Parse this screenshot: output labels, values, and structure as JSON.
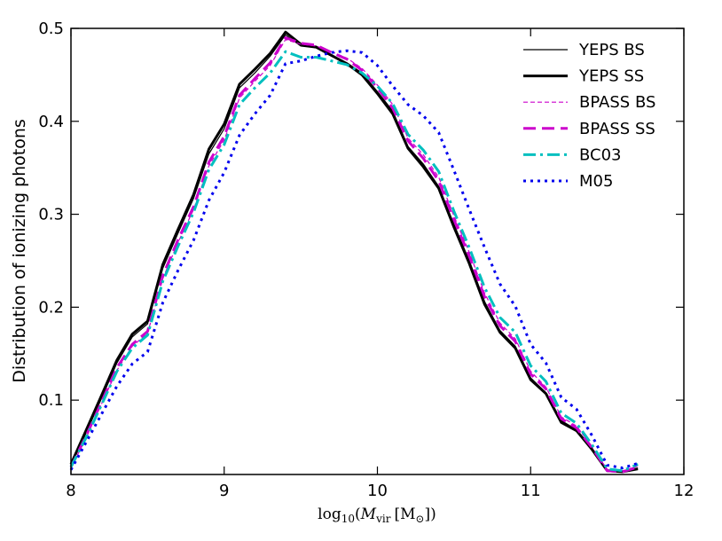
{
  "chart_data": {
    "type": "line",
    "title": "",
    "xlabel": "log10(M_vir [M_sun])",
    "xlabel_parts": {
      "func": "log",
      "sub": "10",
      "open": "(",
      "var": "M",
      "varsub": "vir",
      "unit_open": "[M",
      "unit_sub": "⊙",
      "close": "])"
    },
    "ylabel": "Distribution of ionizing photons",
    "xlim": [
      8,
      12
    ],
    "ylim": [
      0.02,
      0.5
    ],
    "xticks": [
      8,
      9,
      10,
      11,
      12
    ],
    "xtick_labels": [
      "8",
      "9",
      "10",
      "11",
      "12"
    ],
    "yticks": [
      0.1,
      0.2,
      0.3,
      0.4,
      0.5
    ],
    "ytick_labels": [
      "0.1",
      "0.2",
      "0.3",
      "0.4",
      "0.5"
    ],
    "grid": false,
    "legend_position": "top-right",
    "series": [
      {
        "name": "YEPS BS",
        "color": "#000000",
        "style": "solid",
        "width": 1.2,
        "x": [
          8.0,
          8.1,
          8.2,
          8.3,
          8.4,
          8.5,
          8.6,
          8.7,
          8.8,
          8.9,
          9.0,
          9.1,
          9.2,
          9.3,
          9.4,
          9.5,
          9.6,
          9.7,
          9.8,
          9.9,
          10.0,
          10.1,
          10.2,
          10.3,
          10.4,
          10.5,
          10.6,
          10.7,
          10.8,
          10.9,
          11.0,
          11.1,
          11.2,
          11.3,
          11.4,
          11.5,
          11.6,
          11.7
        ],
        "y": [
          0.03,
          0.065,
          0.102,
          0.14,
          0.168,
          0.182,
          0.242,
          0.28,
          0.317,
          0.365,
          0.392,
          0.436,
          0.452,
          0.47,
          0.493,
          0.481,
          0.479,
          0.47,
          0.463,
          0.452,
          0.432,
          0.411,
          0.373,
          0.354,
          0.33,
          0.289,
          0.25,
          0.206,
          0.175,
          0.158,
          0.124,
          0.108,
          0.078,
          0.068,
          0.048,
          0.025,
          0.024,
          0.027
        ]
      },
      {
        "name": "YEPS SS",
        "color": "#000000",
        "style": "solid",
        "width": 3,
        "x": [
          8.0,
          8.1,
          8.2,
          8.3,
          8.4,
          8.5,
          8.6,
          8.7,
          8.8,
          8.9,
          9.0,
          9.1,
          9.2,
          9.3,
          9.4,
          9.5,
          9.6,
          9.7,
          9.8,
          9.9,
          10.0,
          10.1,
          10.2,
          10.3,
          10.4,
          10.5,
          10.6,
          10.7,
          10.8,
          10.9,
          11.0,
          11.1,
          11.2,
          11.3,
          11.4,
          11.5,
          11.6,
          11.7
        ],
        "y": [
          0.031,
          0.068,
          0.105,
          0.143,
          0.171,
          0.185,
          0.246,
          0.284,
          0.321,
          0.37,
          0.397,
          0.44,
          0.456,
          0.473,
          0.496,
          0.483,
          0.48,
          0.471,
          0.462,
          0.45,
          0.43,
          0.408,
          0.371,
          0.351,
          0.328,
          0.286,
          0.247,
          0.203,
          0.173,
          0.156,
          0.122,
          0.107,
          0.076,
          0.067,
          0.047,
          0.024,
          0.023,
          0.026
        ]
      },
      {
        "name": "BPASS BS",
        "color": "#cc00cc",
        "style": "dashed-thin",
        "width": 1.2,
        "x": [
          8.0,
          8.1,
          8.2,
          8.3,
          8.4,
          8.5,
          8.6,
          8.7,
          8.8,
          8.9,
          9.0,
          9.1,
          9.2,
          9.3,
          9.4,
          9.5,
          9.6,
          9.7,
          9.8,
          9.9,
          10.0,
          10.1,
          10.2,
          10.3,
          10.4,
          10.5,
          10.6,
          10.7,
          10.8,
          10.9,
          11.0,
          11.1,
          11.2,
          11.3,
          11.4,
          11.5,
          11.6,
          11.7
        ],
        "y": [
          0.027,
          0.06,
          0.096,
          0.132,
          0.158,
          0.172,
          0.231,
          0.27,
          0.305,
          0.352,
          0.38,
          0.425,
          0.443,
          0.46,
          0.488,
          0.483,
          0.481,
          0.475,
          0.468,
          0.457,
          0.439,
          0.418,
          0.382,
          0.364,
          0.34,
          0.298,
          0.259,
          0.215,
          0.183,
          0.166,
          0.131,
          0.114,
          0.082,
          0.072,
          0.05,
          0.025,
          0.024,
          0.029
        ]
      },
      {
        "name": "BPASS SS",
        "color": "#cc00cc",
        "style": "dashed-thick",
        "width": 3,
        "x": [
          8.0,
          8.1,
          8.2,
          8.3,
          8.4,
          8.5,
          8.6,
          8.7,
          8.8,
          8.9,
          9.0,
          9.1,
          9.2,
          9.3,
          9.4,
          9.5,
          9.6,
          9.7,
          9.8,
          9.9,
          10.0,
          10.1,
          10.2,
          10.3,
          10.4,
          10.5,
          10.6,
          10.7,
          10.8,
          10.9,
          11.0,
          11.1,
          11.2,
          11.3,
          11.4,
          11.5,
          11.6,
          11.7
        ],
        "y": [
          0.028,
          0.062,
          0.098,
          0.135,
          0.16,
          0.174,
          0.234,
          0.273,
          0.308,
          0.356,
          0.384,
          0.428,
          0.446,
          0.463,
          0.49,
          0.484,
          0.482,
          0.474,
          0.467,
          0.455,
          0.436,
          0.414,
          0.379,
          0.36,
          0.336,
          0.294,
          0.255,
          0.211,
          0.18,
          0.163,
          0.128,
          0.112,
          0.08,
          0.07,
          0.049,
          0.024,
          0.023,
          0.028
        ]
      },
      {
        "name": "BC03",
        "color": "#00bfbf",
        "style": "dashdot",
        "width": 3,
        "x": [
          8.0,
          8.1,
          8.2,
          8.3,
          8.4,
          8.5,
          8.6,
          8.7,
          8.8,
          8.9,
          9.0,
          9.1,
          9.2,
          9.3,
          9.4,
          9.5,
          9.6,
          9.7,
          9.8,
          9.9,
          10.0,
          10.1,
          10.2,
          10.3,
          10.4,
          10.5,
          10.6,
          10.7,
          10.8,
          10.9,
          11.0,
          11.1,
          11.2,
          11.3,
          11.4,
          11.5,
          11.6,
          11.7
        ],
        "y": [
          0.028,
          0.06,
          0.095,
          0.131,
          0.156,
          0.17,
          0.228,
          0.266,
          0.302,
          0.348,
          0.375,
          0.418,
          0.436,
          0.452,
          0.475,
          0.469,
          0.469,
          0.465,
          0.461,
          0.452,
          0.438,
          0.419,
          0.386,
          0.369,
          0.346,
          0.303,
          0.264,
          0.221,
          0.189,
          0.173,
          0.137,
          0.12,
          0.086,
          0.075,
          0.052,
          0.026,
          0.024,
          0.031
        ]
      },
      {
        "name": "M05",
        "color": "#0000ee",
        "style": "dotted",
        "width": 3,
        "x": [
          8.0,
          8.1,
          8.2,
          8.3,
          8.4,
          8.5,
          8.6,
          8.7,
          8.8,
          8.9,
          9.0,
          9.1,
          9.2,
          9.3,
          9.4,
          9.5,
          9.6,
          9.7,
          9.8,
          9.9,
          10.0,
          10.1,
          10.2,
          10.3,
          10.4,
          10.5,
          10.6,
          10.7,
          10.8,
          10.9,
          11.0,
          11.1,
          11.2,
          11.3,
          11.4,
          11.5,
          11.6,
          11.7
        ],
        "y": [
          0.025,
          0.055,
          0.085,
          0.115,
          0.139,
          0.152,
          0.205,
          0.24,
          0.272,
          0.315,
          0.345,
          0.385,
          0.408,
          0.428,
          0.462,
          0.465,
          0.47,
          0.474,
          0.476,
          0.474,
          0.46,
          0.438,
          0.418,
          0.406,
          0.388,
          0.347,
          0.305,
          0.264,
          0.225,
          0.201,
          0.16,
          0.14,
          0.103,
          0.09,
          0.062,
          0.03,
          0.027,
          0.032
        ]
      }
    ]
  }
}
